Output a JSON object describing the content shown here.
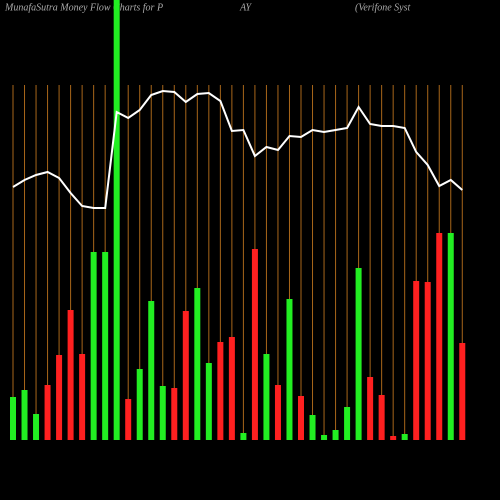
{
  "chart_data": {
    "type": "bar",
    "title": "MunafaSutra  Money Flow  Charts for P",
    "ticker": "AY",
    "company": "(Verifone   Syst",
    "categories": [
      null,
      null,
      null,
      null,
      null,
      null,
      null,
      null,
      null,
      null,
      null,
      null,
      null,
      null,
      null,
      null,
      null,
      null,
      null,
      null,
      null,
      null,
      null,
      null,
      null,
      null,
      null,
      null,
      null,
      null,
      null,
      null,
      null,
      null,
      null,
      null,
      null,
      null,
      null,
      null
    ],
    "values": [
      43,
      50,
      26,
      55,
      85,
      130,
      86,
      188,
      188,
      440,
      41,
      71,
      139,
      54,
      52,
      129,
      152,
      77,
      98,
      103,
      7,
      191,
      86,
      55,
      141,
      44,
      25,
      5,
      10,
      33,
      172,
      63,
      45,
      4,
      6,
      159,
      158,
      207,
      207,
      97
    ],
    "colors": [
      "#22ee22",
      "#22ee22",
      "#22ee22",
      "#ff2020",
      "#ff2020",
      "#ff2020",
      "#ff2020",
      "#22ee22",
      "#22ee22",
      "#22ee22",
      "#ff2020",
      "#22ee22",
      "#22ee22",
      "#22ee22",
      "#ff2020",
      "#ff2020",
      "#22ee22",
      "#22ee22",
      "#ff2020",
      "#ff2020",
      "#22ee22",
      "#ff2020",
      "#22ee22",
      "#ff2020",
      "#22ee22",
      "#ff2020",
      "#22ee22",
      "#22ee22",
      "#22ee22",
      "#22ee22",
      "#22ee22",
      "#ff2020",
      "#ff2020",
      "#ff2020",
      "#22ee22",
      "#ff2020",
      "#ff2020",
      "#ff2020",
      "#22ee22",
      "#ff2020"
    ],
    "line_values": [
      253,
      260,
      265,
      268,
      262,
      247,
      234,
      232,
      232,
      328,
      322,
      330,
      345,
      349,
      348,
      338,
      346,
      347,
      339,
      309,
      310,
      284,
      293,
      290,
      304,
      303,
      310,
      308,
      310,
      312,
      333,
      316,
      314,
      314,
      312,
      288,
      275,
      254,
      260,
      250
    ],
    "line_color": "#ffffff",
    "ylim": [
      0,
      440
    ]
  }
}
